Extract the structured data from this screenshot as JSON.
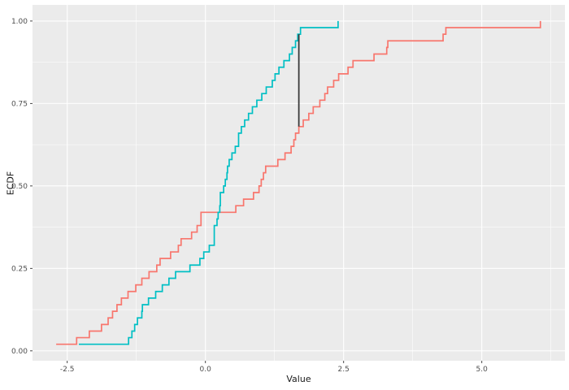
{
  "chart_data": {
    "type": "line",
    "variant": "ecdf-step",
    "title": "",
    "xlabel": "Value",
    "ylabel": "ECDF",
    "grid": true,
    "legend": "none",
    "panel_fill": "#EBEBEB",
    "gridline_color": "#FFFFFF",
    "x_ticks": {
      "values": [
        -2.5,
        0.0,
        2.5,
        5.0
      ],
      "labels": [
        "-2.5",
        "0.0",
        "2.5",
        "5.0"
      ]
    },
    "y_ticks": {
      "values": [
        0.0,
        0.25,
        0.5,
        0.75,
        1.0
      ],
      "labels": [
        "0.00",
        "0.25",
        "0.50",
        "0.75",
        "1.00"
      ]
    },
    "x_minor": [
      -1.25,
      1.25,
      3.75,
      6.25
    ],
    "y_minor": [
      0.125,
      0.375,
      0.625,
      0.875
    ],
    "x_range": [
      -3.128,
      6.504
    ],
    "y_range": [
      -0.03,
      1.049
    ],
    "series": [
      {
        "name": "ecdf-red",
        "color": "#F8766D",
        "n": 50,
        "values": [
          -2.7,
          -2.33,
          -2.1,
          -1.88,
          -1.76,
          -1.68,
          -1.6,
          -1.52,
          -1.4,
          -1.26,
          -1.15,
          -1.02,
          -0.88,
          -0.82,
          -0.63,
          -0.49,
          -0.44,
          -0.25,
          -0.15,
          -0.08,
          -0.08,
          0.55,
          0.69,
          0.87,
          0.97,
          1.01,
          1.05,
          1.09,
          1.31,
          1.44,
          1.55,
          1.6,
          1.63,
          1.69,
          1.77,
          1.87,
          1.95,
          2.07,
          2.16,
          2.21,
          2.32,
          2.41,
          2.58,
          2.67,
          3.05,
          3.28,
          3.3,
          4.3,
          4.35,
          6.06
        ]
      },
      {
        "name": "ecdf-teal",
        "color": "#00BFC4",
        "n": 50,
        "values": [
          -2.29,
          -1.39,
          -1.33,
          -1.28,
          -1.23,
          -1.15,
          -1.14,
          -1.03,
          -0.9,
          -0.78,
          -0.66,
          -0.54,
          -0.28,
          -0.1,
          -0.03,
          0.07,
          0.16,
          0.16,
          0.16,
          0.21,
          0.23,
          0.26,
          0.27,
          0.27,
          0.33,
          0.36,
          0.39,
          0.4,
          0.43,
          0.48,
          0.54,
          0.6,
          0.6,
          0.65,
          0.71,
          0.78,
          0.85,
          0.93,
          1.02,
          1.1,
          1.21,
          1.26,
          1.33,
          1.42,
          1.52,
          1.57,
          1.63,
          1.67,
          1.72,
          2.4
        ]
      }
    ],
    "annotations": [
      {
        "type": "vertical-segment",
        "x": 1.69,
        "y_start": 0.68,
        "y_end": 0.96,
        "color": "#3A3A3A"
      }
    ]
  },
  "style": {
    "tick_label_color": "#4D4D4D",
    "tick_mark_color": "#333333",
    "line_width": 1.7
  }
}
